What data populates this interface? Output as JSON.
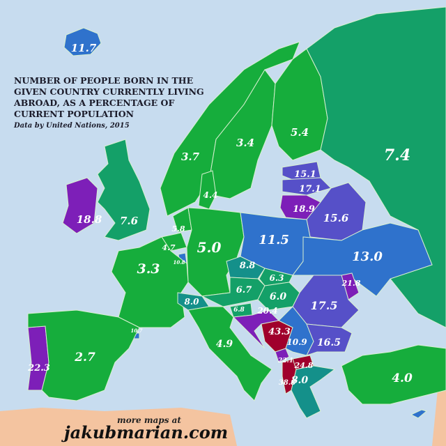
{
  "title": "NUMBER OF PEOPLE BORN IN THE GIVEN COUNTRY CURRENTLY LIVING ABROAD, AS A PERCENTAGE OF CURRENT POPULATION",
  "subtitle": "Data by United Nations, 2015",
  "footer": {
    "small": "more maps at",
    "brand": "jakubmarian.com"
  },
  "colors": {
    "sea": "#c7dcef",
    "land_outside": "#f4c4a0",
    "green": "#16ad3c",
    "teal_green": "#14a068",
    "teal": "#14908a",
    "blue": "#2f72cc",
    "indigo": "#5650c8",
    "purple": "#7d1fb8",
    "dark_red": "#a0002c"
  },
  "countries": [
    {
      "id": "iceland",
      "value": "11.7",
      "color": "#2f72cc"
    },
    {
      "id": "ireland",
      "value": "18.8",
      "color": "#7d1fb8"
    },
    {
      "id": "uk",
      "value": "7.6",
      "color": "#14a068"
    },
    {
      "id": "norway",
      "value": "3.7",
      "color": "#16ad3c"
    },
    {
      "id": "sweden",
      "value": "3.4",
      "color": "#16ad3c"
    },
    {
      "id": "finland",
      "value": "5.4",
      "color": "#16ad3c"
    },
    {
      "id": "russia",
      "value": "7.4",
      "color": "#14a068"
    },
    {
      "id": "estonia",
      "value": "15.1",
      "color": "#5650c8"
    },
    {
      "id": "latvia",
      "value": "17.1",
      "color": "#5650c8"
    },
    {
      "id": "lithuania",
      "value": "18.9",
      "color": "#7d1fb8"
    },
    {
      "id": "belarus",
      "value": "15.6",
      "color": "#5650c8"
    },
    {
      "id": "denmark",
      "value": "4.4",
      "color": "#16ad3c"
    },
    {
      "id": "netherlands",
      "value": "5.8",
      "color": "#16ad3c"
    },
    {
      "id": "belgium",
      "value": "4.7",
      "color": "#16ad3c"
    },
    {
      "id": "luxembourg",
      "value": "10.8",
      "color": "#2f72cc"
    },
    {
      "id": "germany",
      "value": "5.0",
      "color": "#16ad3c"
    },
    {
      "id": "poland",
      "value": "11.5",
      "color": "#2f72cc"
    },
    {
      "id": "ukraine",
      "value": "13.0",
      "color": "#2f72cc"
    },
    {
      "id": "france",
      "value": "3.3",
      "color": "#16ad3c"
    },
    {
      "id": "czechia",
      "value": "8.8",
      "color": "#14908a"
    },
    {
      "id": "slovakia",
      "value": "6.3",
      "color": "#14a068"
    },
    {
      "id": "austria",
      "value": "6.7",
      "color": "#14a068"
    },
    {
      "id": "hungary",
      "value": "6.0",
      "color": "#14a068"
    },
    {
      "id": "switzerland",
      "value": "8.0",
      "color": "#14908a"
    },
    {
      "id": "moldova",
      "value": "21.8",
      "color": "#7d1fb8"
    },
    {
      "id": "romania",
      "value": "17.5",
      "color": "#5650c8"
    },
    {
      "id": "slovenia",
      "value": "6.8",
      "color": "#14a068"
    },
    {
      "id": "croatia",
      "value": "20.4",
      "color": "#7d1fb8"
    },
    {
      "id": "bosnia",
      "value": "43.3",
      "color": "#a0002c"
    },
    {
      "id": "serbia",
      "value": "10.9",
      "color": "#2f72cc"
    },
    {
      "id": "montenegro",
      "value": "22.1",
      "color": "#7d1fb8"
    },
    {
      "id": "macedonia",
      "value": "24.8",
      "color": "#a0002c"
    },
    {
      "id": "albania",
      "value": "38.8",
      "color": "#a0002c"
    },
    {
      "id": "bulgaria",
      "value": "16.5",
      "color": "#5650c8"
    },
    {
      "id": "andorra",
      "value": "10.7",
      "color": "#2f72cc"
    },
    {
      "id": "portugal",
      "value": "22.3",
      "color": "#7d1fb8"
    },
    {
      "id": "spain",
      "value": "2.7",
      "color": "#16ad3c"
    },
    {
      "id": "italy",
      "value": "4.9",
      "color": "#16ad3c"
    },
    {
      "id": "greece",
      "value": "8.0",
      "color": "#14908a"
    },
    {
      "id": "turkey",
      "value": "4.0",
      "color": "#16ad3c"
    },
    {
      "id": "cyprus",
      "value": "",
      "color": "#2f72cc"
    }
  ]
}
